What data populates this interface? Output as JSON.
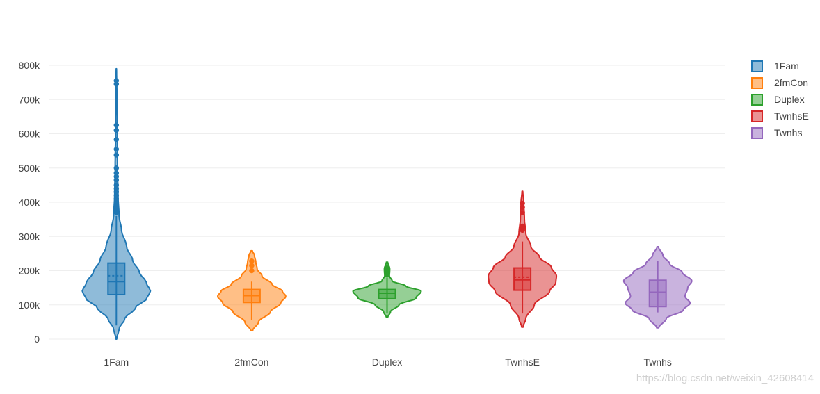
{
  "chart_data": {
    "type": "violin",
    "title": "",
    "xlabel": "",
    "ylabel": "",
    "ylim": [
      -20000,
      800000
    ],
    "yticks": [
      0,
      100000,
      200000,
      300000,
      400000,
      500000,
      600000,
      700000,
      800000
    ],
    "ytick_labels": [
      "0",
      "100k",
      "200k",
      "300k",
      "400k",
      "500k",
      "600k",
      "700k",
      "800k"
    ],
    "categories": [
      "1Fam",
      "2fmCon",
      "Duplex",
      "TwnhsE",
      "Twnhs"
    ],
    "grid": true,
    "legend": "top-right",
    "series": [
      {
        "name": "1Fam",
        "color": "#1f77b4",
        "min": 0,
        "q1": 130000,
        "median": 168000,
        "mean": 185000,
        "q3": 222000,
        "lower_fence": 40000,
        "upper_fence": 360000,
        "max": 790000,
        "outliers": [
          370000,
          375000,
          380000,
          385000,
          390000,
          395000,
          400000,
          410000,
          420000,
          430000,
          440000,
          450000,
          465000,
          475000,
          485000,
          500000,
          538000,
          555000,
          583000,
          610000,
          625000,
          745000,
          755000
        ],
        "density": [
          [
            0,
            0.01
          ],
          [
            30000,
            0.08
          ],
          [
            60000,
            0.25
          ],
          [
            90000,
            0.55
          ],
          [
            120000,
            0.9
          ],
          [
            140000,
            1.0
          ],
          [
            165000,
            0.88
          ],
          [
            195000,
            0.68
          ],
          [
            230000,
            0.48
          ],
          [
            270000,
            0.3
          ],
          [
            320000,
            0.15
          ],
          [
            360000,
            0.08
          ],
          [
            420000,
            0.05
          ],
          [
            500000,
            0.035
          ],
          [
            600000,
            0.025
          ],
          [
            700000,
            0.018
          ],
          [
            790000,
            0.005
          ]
        ]
      },
      {
        "name": "2fmCon",
        "color": "#ff7f0e",
        "min": 55000,
        "q1": 107000,
        "median": 127000,
        "mean": 127000,
        "q3": 145000,
        "lower_fence": 55000,
        "upper_fence": 168000,
        "max": 258000,
        "outliers": [
          200000,
          215000,
          228000
        ],
        "density": [
          [
            25000,
            0.03
          ],
          [
            50000,
            0.2
          ],
          [
            80000,
            0.55
          ],
          [
            105000,
            0.85
          ],
          [
            125000,
            1.0
          ],
          [
            140000,
            0.9
          ],
          [
            160000,
            0.6
          ],
          [
            185000,
            0.3
          ],
          [
            205000,
            0.16
          ],
          [
            225000,
            0.12
          ],
          [
            245000,
            0.08
          ],
          [
            258000,
            0.02
          ]
        ]
      },
      {
        "name": "Duplex",
        "color": "#2ca02c",
        "min": 75000,
        "q1": 118000,
        "median": 134000,
        "mean": 134000,
        "q3": 145000,
        "lower_fence": 75000,
        "upper_fence": 180000,
        "max": 225000,
        "outliers": [
          188000,
          193000,
          200000,
          208000
        ],
        "density": [
          [
            63000,
            0.02
          ],
          [
            80000,
            0.1
          ],
          [
            100000,
            0.35
          ],
          [
            120000,
            0.85
          ],
          [
            140000,
            1.0
          ],
          [
            155000,
            0.55
          ],
          [
            170000,
            0.15
          ],
          [
            185000,
            0.07
          ],
          [
            205000,
            0.08
          ],
          [
            225000,
            0.02
          ]
        ]
      },
      {
        "name": "TwnhsE",
        "color": "#d62728",
        "min": 75000,
        "q1": 143000,
        "median": 173000,
        "mean": 181000,
        "q3": 208000,
        "lower_fence": 75000,
        "upper_fence": 285000,
        "max": 432000,
        "outliers": [
          318000,
          322000,
          326000,
          330000,
          370000,
          385000,
          397000
        ],
        "density": [
          [
            35000,
            0.02
          ],
          [
            60000,
            0.1
          ],
          [
            100000,
            0.35
          ],
          [
            140000,
            0.8
          ],
          [
            165000,
            0.98
          ],
          [
            185000,
            1.0
          ],
          [
            210000,
            0.85
          ],
          [
            240000,
            0.5
          ],
          [
            270000,
            0.25
          ],
          [
            310000,
            0.1
          ],
          [
            350000,
            0.06
          ],
          [
            400000,
            0.04
          ],
          [
            432000,
            0.01
          ]
        ]
      },
      {
        "name": "Twnhs",
        "color": "#9467bd",
        "min": 78000,
        "q1": 95000,
        "median": 137000,
        "mean": 137000,
        "q3": 172000,
        "lower_fence": 78000,
        "upper_fence": 228000,
        "max": 270000,
        "outliers": [],
        "density": [
          [
            33000,
            0.03
          ],
          [
            60000,
            0.25
          ],
          [
            85000,
            0.75
          ],
          [
            105000,
            0.95
          ],
          [
            125000,
            0.8
          ],
          [
            150000,
            0.88
          ],
          [
            170000,
            1.0
          ],
          [
            195000,
            0.72
          ],
          [
            220000,
            0.35
          ],
          [
            245000,
            0.15
          ],
          [
            270000,
            0.02
          ]
        ]
      }
    ]
  },
  "watermark": "https://blog.csdn.net/weixin_42608414"
}
